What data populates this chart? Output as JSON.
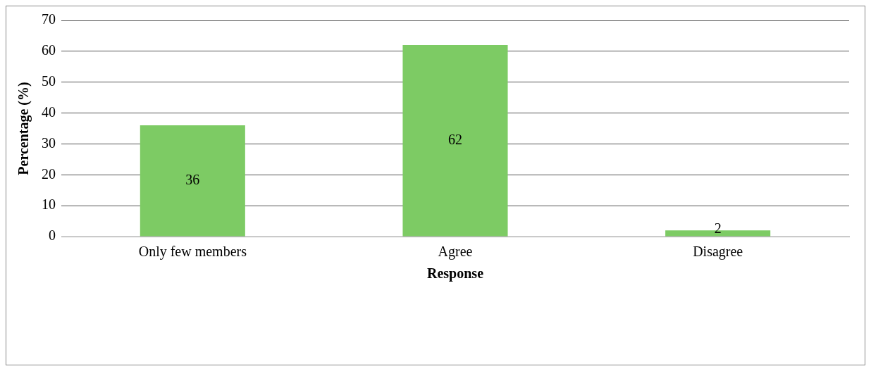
{
  "chart_data": {
    "type": "bar",
    "xlabel": "Response",
    "ylabel": "Percentage (%)",
    "categories": [
      "Only few members",
      "Agree",
      "Disagree"
    ],
    "values": [
      36,
      62,
      2
    ],
    "color": "#7dcb64",
    "ylim": [
      0,
      70
    ],
    "yticks": [
      0,
      10,
      20,
      30,
      40,
      50,
      60,
      70
    ],
    "grid": "y",
    "legend": false,
    "data_labels": true
  }
}
